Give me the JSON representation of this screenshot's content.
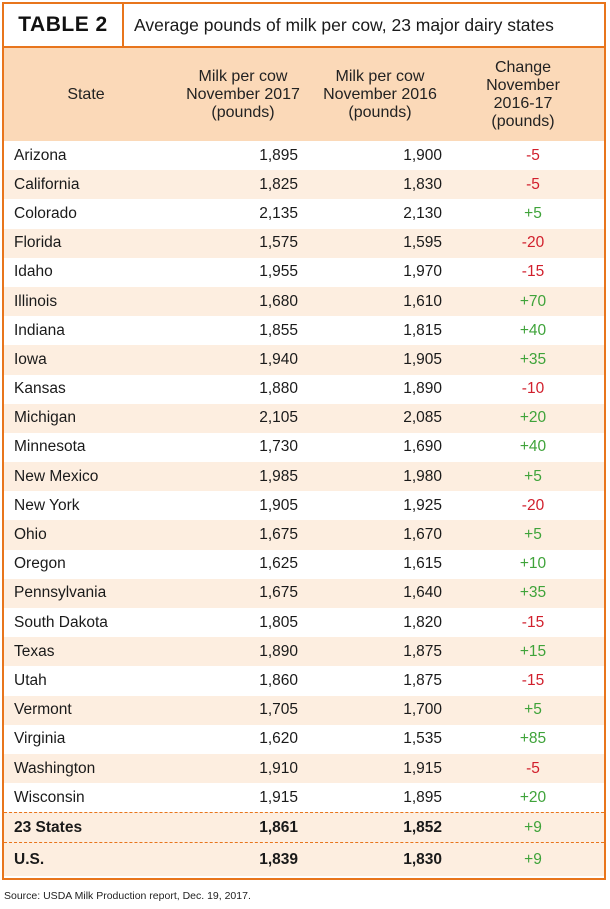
{
  "table_label": "TABLE 2",
  "title": "Average pounds of milk per cow, 23 major dairy states",
  "columns": {
    "state": "State",
    "y2017": "Milk per cow\nNovember 2017\n(pounds)",
    "y2016": "Milk per cow\nNovember 2016\n(pounds)",
    "change": "Change\nNovember\n2016-17\n(pounds)"
  },
  "rows": [
    {
      "state": "Arizona",
      "y2017": "1,895",
      "y2016": "1,900",
      "change": "-5"
    },
    {
      "state": "California",
      "y2017": "1,825",
      "y2016": "1,830",
      "change": "-5"
    },
    {
      "state": "Colorado",
      "y2017": "2,135",
      "y2016": "2,130",
      "change": "+5"
    },
    {
      "state": "Florida",
      "y2017": "1,575",
      "y2016": "1,595",
      "change": "-20"
    },
    {
      "state": "Idaho",
      "y2017": "1,955",
      "y2016": "1,970",
      "change": "-15"
    },
    {
      "state": "Illinois",
      "y2017": "1,680",
      "y2016": "1,610",
      "change": "+70"
    },
    {
      "state": "Indiana",
      "y2017": "1,855",
      "y2016": "1,815",
      "change": "+40"
    },
    {
      "state": "Iowa",
      "y2017": "1,940",
      "y2016": "1,905",
      "change": "+35"
    },
    {
      "state": "Kansas",
      "y2017": "1,880",
      "y2016": "1,890",
      "change": "-10"
    },
    {
      "state": "Michigan",
      "y2017": "2,105",
      "y2016": "2,085",
      "change": "+20"
    },
    {
      "state": "Minnesota",
      "y2017": "1,730",
      "y2016": "1,690",
      "change": "+40"
    },
    {
      "state": "New Mexico",
      "y2017": "1,985",
      "y2016": "1,980",
      "change": "+5"
    },
    {
      "state": "New York",
      "y2017": "1,905",
      "y2016": "1,925",
      "change": "-20"
    },
    {
      "state": "Ohio",
      "y2017": "1,675",
      "y2016": "1,670",
      "change": "+5"
    },
    {
      "state": "Oregon",
      "y2017": "1,625",
      "y2016": "1,615",
      "change": "+10"
    },
    {
      "state": "Pennsylvania",
      "y2017": "1,675",
      "y2016": "1,640",
      "change": "+35"
    },
    {
      "state": "South Dakota",
      "y2017": "1,805",
      "y2016": "1,820",
      "change": "-15"
    },
    {
      "state": "Texas",
      "y2017": "1,890",
      "y2016": "1,875",
      "change": "+15"
    },
    {
      "state": "Utah",
      "y2017": "1,860",
      "y2016": "1,875",
      "change": "-15"
    },
    {
      "state": "Vermont",
      "y2017": "1,705",
      "y2016": "1,700",
      "change": "+5"
    },
    {
      "state": "Virginia",
      "y2017": "1,620",
      "y2016": "1,535",
      "change": "+85"
    },
    {
      "state": "Washington",
      "y2017": "1,910",
      "y2016": "1,915",
      "change": "-5"
    },
    {
      "state": "Wisconsin",
      "y2017": "1,915",
      "y2016": "1,895",
      "change": "+20"
    }
  ],
  "total": {
    "state": "23 States",
    "y2017": "1,861",
    "y2016": "1,852",
    "change": "+9"
  },
  "us": {
    "state": "U.S.",
    "y2017": "1,839",
    "y2016": "1,830",
    "change": "+9"
  },
  "source": "Source: USDA Milk Production report, Dec. 19, 2017.",
  "colors": {
    "accent": "#e8751c",
    "header_bg": "#fbd9b8",
    "stripe_bg": "#fdeee0",
    "negative": "#d11f2c",
    "positive": "#3fa33a"
  }
}
